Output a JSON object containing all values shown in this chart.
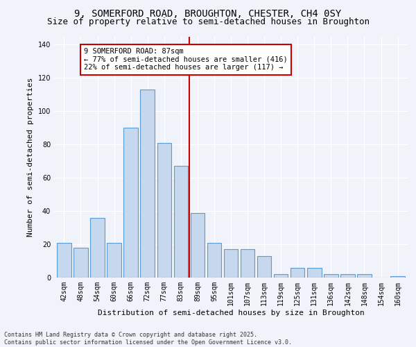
{
  "title1": "9, SOMERFORD ROAD, BROUGHTON, CHESTER, CH4 0SY",
  "title2": "Size of property relative to semi-detached houses in Broughton",
  "xlabel": "Distribution of semi-detached houses by size in Broughton",
  "ylabel": "Number of semi-detached properties",
  "categories": [
    "42sqm",
    "48sqm",
    "54sqm",
    "60sqm",
    "66sqm",
    "72sqm",
    "77sqm",
    "83sqm",
    "89sqm",
    "95sqm",
    "101sqm",
    "107sqm",
    "113sqm",
    "119sqm",
    "125sqm",
    "131sqm",
    "136sqm",
    "142sqm",
    "148sqm",
    "154sqm",
    "160sqm"
  ],
  "values": [
    21,
    18,
    36,
    21,
    90,
    113,
    81,
    67,
    39,
    21,
    17,
    17,
    13,
    2,
    6,
    6,
    2,
    2,
    2,
    0,
    1
  ],
  "bar_color": "#c5d8ed",
  "bar_edge_color": "#5b9bd5",
  "vline_color": "#cc0000",
  "annotation_text": "9 SOMERFORD ROAD: 87sqm\n← 77% of semi-detached houses are smaller (416)\n22% of semi-detached houses are larger (117) →",
  "annotation_box_color": "#cc0000",
  "background_color": "#f0f4fa",
  "footer_text": "Contains HM Land Registry data © Crown copyright and database right 2025.\nContains public sector information licensed under the Open Government Licence v3.0.",
  "ylim": [
    0,
    145
  ],
  "yticks": [
    0,
    20,
    40,
    60,
    80,
    100,
    120,
    140
  ],
  "title_fontsize": 10,
  "subtitle_fontsize": 9,
  "axis_label_fontsize": 8,
  "tick_fontsize": 7,
  "annotation_fontsize": 7.5,
  "footer_fontsize": 6
}
